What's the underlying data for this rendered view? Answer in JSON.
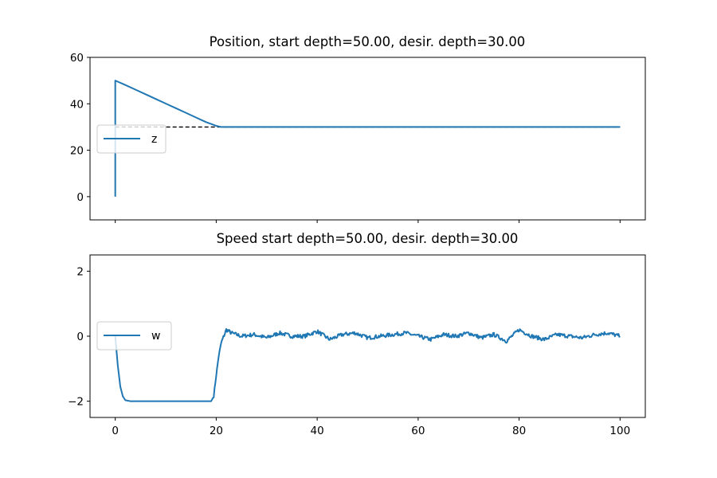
{
  "chart_data": [
    {
      "type": "line",
      "title": "Position, start depth=50.00, desir. depth=30.00",
      "xlabel": "",
      "ylabel": "",
      "xlim": [
        -5,
        105
      ],
      "ylim": [
        -10,
        60
      ],
      "yticks": [
        0,
        20,
        40,
        60
      ],
      "xticks": [
        0,
        20,
        40,
        60,
        80,
        100
      ],
      "show_xtick_labels": false,
      "grid": false,
      "legend": {
        "placement": "center-left"
      },
      "series": [
        {
          "name": "z",
          "color": "#1f77b4",
          "x": [
            0,
            0,
            2,
            4,
            6,
            8,
            10,
            12,
            14,
            16,
            18,
            20,
            21,
            22,
            30,
            40,
            50,
            60,
            70,
            80,
            90,
            100
          ],
          "y": [
            0,
            50,
            48.1,
            46.1,
            44.1,
            42.1,
            40.1,
            38.1,
            36.1,
            34.1,
            32.1,
            30.5,
            30.0,
            30.0,
            30.0,
            30.0,
            30.0,
            30.0,
            30.0,
            30.0,
            30.0,
            30.0
          ]
        }
      ],
      "reference_line": {
        "y": 30,
        "x_range": [
          0,
          100
        ],
        "style": "dashed",
        "color": "#000000"
      }
    },
    {
      "type": "line",
      "title": "Speed start depth=50.00, desir. depth=30.00",
      "xlabel": "",
      "ylabel": "",
      "xlim": [
        -5,
        105
      ],
      "ylim": [
        -2.5,
        2.5
      ],
      "yticks": [
        -2,
        0,
        2
      ],
      "ytick_labels": [
        "−2",
        "0",
        "2"
      ],
      "xticks": [
        0,
        20,
        40,
        60,
        80,
        100
      ],
      "grid": false,
      "legend": {
        "placement": "center-left"
      },
      "series": [
        {
          "name": "w",
          "color": "#1f77b4",
          "x": [
            0,
            0.5,
            1,
            1.5,
            2,
            3,
            5,
            10,
            15,
            19,
            19.5,
            20,
            20.5,
            21,
            22,
            23,
            25,
            27.5,
            30,
            32.5,
            35,
            37.5,
            40,
            42.5,
            45,
            47.5,
            50,
            52.5,
            55,
            57.5,
            60,
            62.5,
            65,
            67.5,
            70,
            72.5,
            75,
            77.5,
            80,
            82.5,
            85,
            87.5,
            90,
            92.5,
            95,
            97.5,
            100
          ],
          "y": [
            0,
            -0.9,
            -1.55,
            -1.85,
            -1.97,
            -2.0,
            -2.0,
            -2.0,
            -2.0,
            -2.0,
            -1.85,
            -1.2,
            -0.6,
            -0.2,
            0.2,
            0.1,
            0.0,
            0.05,
            -0.05,
            0.1,
            0.0,
            0.0,
            0.15,
            -0.1,
            0.05,
            0.1,
            -0.05,
            0.0,
            0.05,
            0.1,
            0.0,
            -0.1,
            0.05,
            0.0,
            0.1,
            -0.05,
            0.05,
            -0.15,
            0.2,
            0.0,
            -0.1,
            0.05,
            0.0,
            -0.05,
            0.05,
            0.1,
            0.0
          ]
        }
      ],
      "noise_amplitude": 0.12
    }
  ]
}
